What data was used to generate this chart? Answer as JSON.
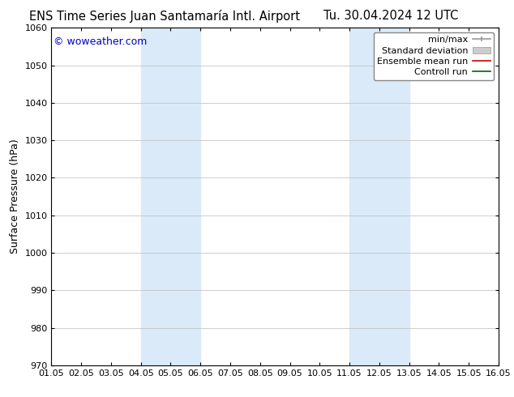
{
  "title_left": "ENS Time Series Juan Santamaría Intl. Airport",
  "title_right": "Tu. 30.04.2024 12 UTC",
  "ylabel": "Surface Pressure (hPa)",
  "watermark": "© woweather.com",
  "ylim": [
    970,
    1060
  ],
  "yticks": [
    970,
    980,
    990,
    1000,
    1010,
    1020,
    1030,
    1040,
    1050,
    1060
  ],
  "xtick_labels": [
    "01.05",
    "02.05",
    "03.05",
    "04.05",
    "05.05",
    "06.05",
    "07.05",
    "08.05",
    "09.05",
    "10.05",
    "11.05",
    "12.05",
    "13.05",
    "14.05",
    "15.05",
    "16.05"
  ],
  "shade_bands": [
    {
      "xstart": 3,
      "xend": 5,
      "color": "#daeaf8"
    },
    {
      "xstart": 10,
      "xend": 12,
      "color": "#daeaf8"
    }
  ],
  "background_color": "#ffffff",
  "plot_bg_color": "#ffffff",
  "grid_color": "#bbbbbb",
  "title_fontsize": 10.5,
  "watermark_color": "#0000cc",
  "watermark_fontsize": 9,
  "tick_fontsize": 8,
  "ylabel_fontsize": 9,
  "legend_fontsize": 8
}
